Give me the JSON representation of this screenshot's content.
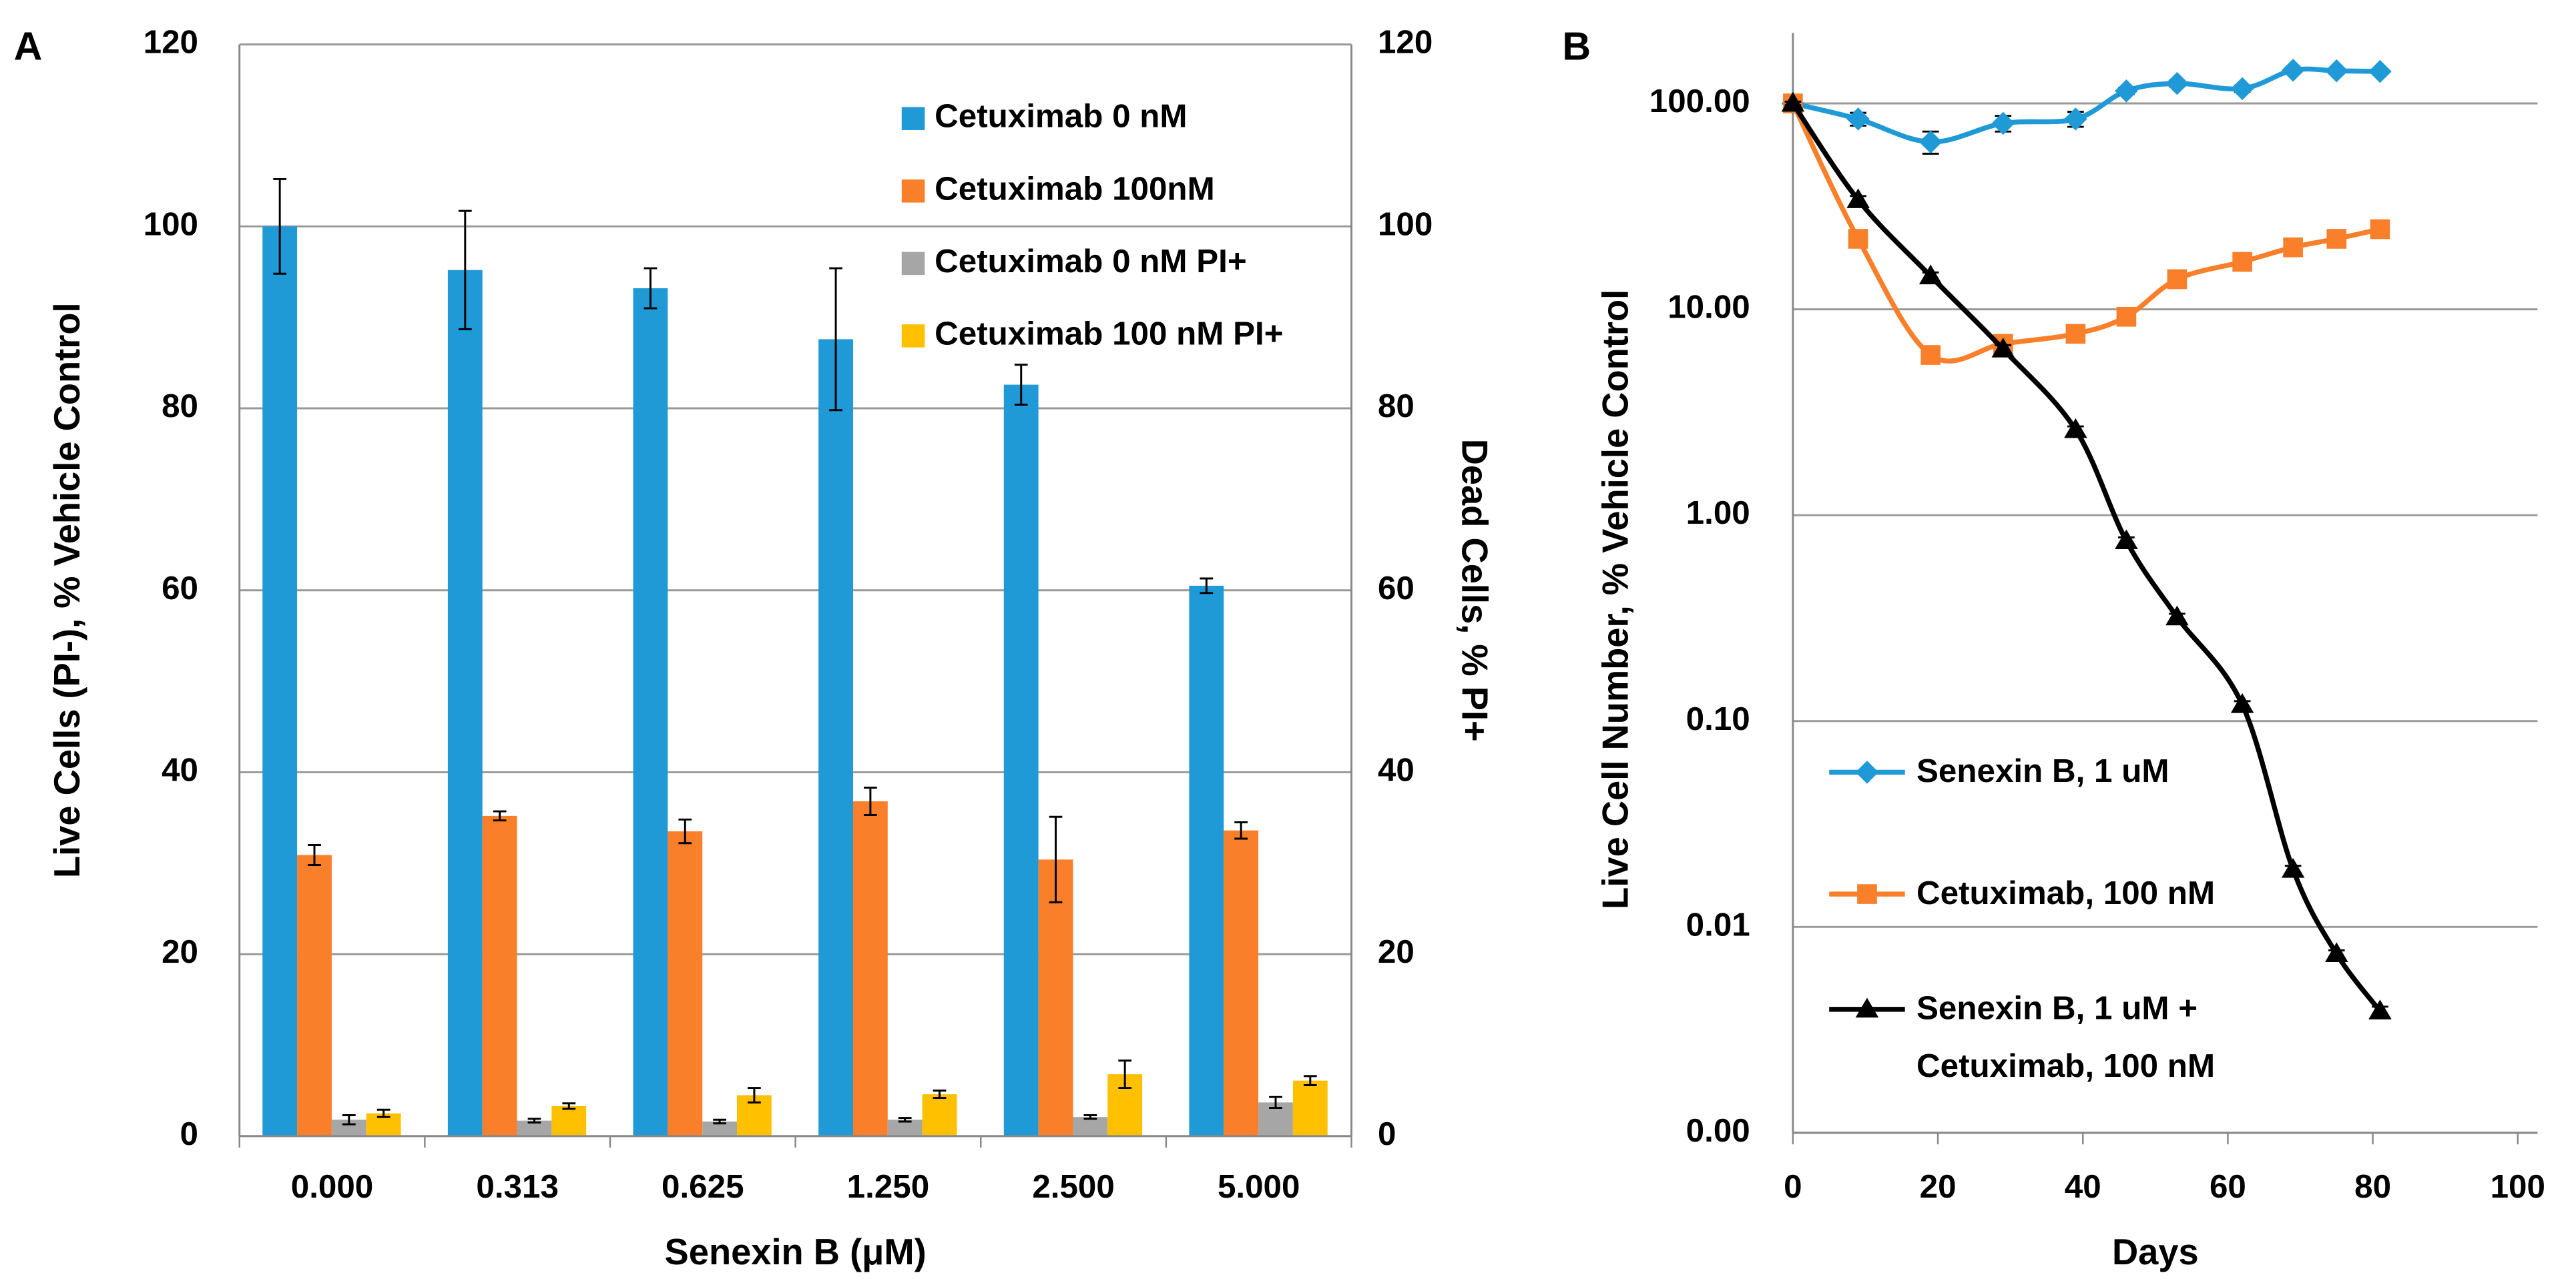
{
  "chart_data": [
    {
      "type": "bar",
      "panel_label": "A",
      "categories": [
        "0.000",
        "0.313",
        "0.625",
        "1.250",
        "2.500",
        "5.000"
      ],
      "x_label": "Senexin B (μM)",
      "y_label": "Live Cells (PI-), % Vehicle Control",
      "y2_label": "Dead Cells, % PI+",
      "ylim": [
        0,
        120
      ],
      "yticks": [
        0,
        20,
        40,
        60,
        80,
        100,
        120
      ],
      "y2lim": [
        0,
        120
      ],
      "y2ticks": [
        0,
        20,
        40,
        60,
        80,
        100,
        120
      ],
      "grid": true,
      "legend": "upper right",
      "series": [
        {
          "name": "Cetuximab 0 nM",
          "color": "#1f9ad6",
          "values": [
            100,
            95.2,
            93.2,
            87.6,
            82.6,
            60.5
          ],
          "errors": [
            5.2,
            6.5,
            2.2,
            7.8,
            2.2,
            0.8
          ]
        },
        {
          "name": "Cetuximab 100nM",
          "color": "#f97f2a",
          "values": [
            30.9,
            35.2,
            33.5,
            36.8,
            30.4,
            33.6
          ],
          "errors": [
            1.1,
            0.5,
            1.3,
            1.5,
            4.7,
            0.9
          ]
        },
        {
          "name": "Cetuximab 0 nM PI+",
          "color": "#a6a6a6",
          "axis": "y2",
          "values": [
            1.8,
            1.7,
            1.6,
            1.8,
            2.1,
            3.7
          ],
          "errors": [
            0.5,
            0.2,
            0.2,
            0.2,
            0.2,
            0.6
          ]
        },
        {
          "name": "Cetuximab 100 nM PI+",
          "color": "#ffc000",
          "axis": "y2",
          "values": [
            2.5,
            3.3,
            4.5,
            4.6,
            6.8,
            6.1
          ],
          "errors": [
            0.4,
            0.3,
            0.8,
            0.4,
            1.5,
            0.5
          ]
        }
      ]
    },
    {
      "type": "line",
      "panel_label": "B",
      "x_label": "Days",
      "y_label": "Live Cell Number, % Vehicle Control",
      "x": [
        0,
        9,
        19,
        29,
        39,
        46,
        53,
        62,
        69,
        75,
        81
      ],
      "xlim": [
        0,
        100
      ],
      "xticks": [
        0,
        20,
        40,
        60,
        80,
        100
      ],
      "ylim": [
        0.001,
        220
      ],
      "log_y": true,
      "smooth": true,
      "yticks": [
        {
          "value": 0.001,
          "label": "0.00"
        },
        {
          "value": 0.01,
          "label": "0.01"
        },
        {
          "value": 0.1,
          "label": "0.10"
        },
        {
          "value": 1,
          "label": "1.00"
        },
        {
          "value": 10,
          "label": "10.00"
        },
        {
          "value": 100,
          "label": "100.00"
        }
      ],
      "grid": true,
      "legend": "lower left",
      "series": [
        {
          "name": "Senexin B, 1 uM",
          "color": "#1f9ad6",
          "marker": "diamond",
          "values": [
            100,
            84,
            65,
            80,
            84,
            115,
            125,
            118,
            145,
            144,
            143
          ],
          "errors": [
            3,
            6,
            8,
            7,
            7,
            4,
            4,
            4,
            4,
            4,
            4
          ]
        },
        {
          "name": "Cetuximab, 100 nM",
          "color": "#f97f2a",
          "marker": "square",
          "values": [
            100,
            22,
            6,
            6.8,
            7.6,
            9.2,
            14,
            17,
            20,
            22,
            24.5
          ],
          "errors": [
            2,
            1,
            0.3,
            0.4,
            0.3,
            0.4,
            0.6,
            0.7,
            0.8,
            0.8,
            0.9
          ]
        },
        {
          "name": "Senexin B, 1 uM + Cetuximab, 100 nM",
          "color": "#000000",
          "marker": "triangle",
          "values": [
            100,
            34,
            14.5,
            6.4,
            2.6,
            0.75,
            0.32,
            0.12,
            0.019,
            0.0074,
            0.0039
          ],
          "errors": [
            2,
            1.5,
            0.6,
            0.3,
            0.1,
            0.03,
            0.012,
            0.005,
            0.0008,
            0.0003,
            0.0002
          ]
        }
      ]
    }
  ]
}
